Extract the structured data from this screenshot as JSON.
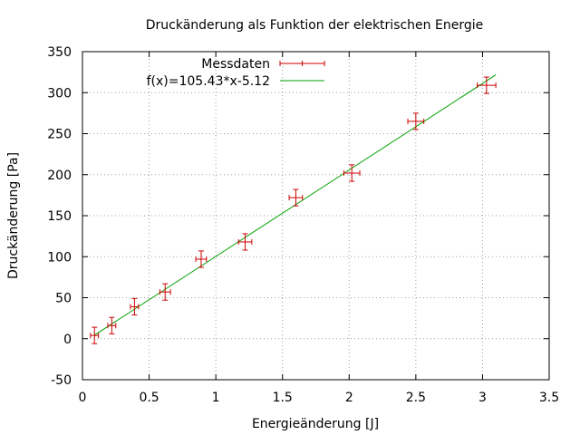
{
  "chart_data": {
    "type": "scatter",
    "title": "Druckänderung als Funktion der elektrischen Energie",
    "xlabel": "Energieänderung [J]",
    "ylabel": "Druckänderung [Pa]",
    "xlim": [
      0,
      3.5
    ],
    "ylim": [
      -50,
      350
    ],
    "xticks": [
      0,
      0.5,
      1,
      1.5,
      2,
      2.5,
      3,
      3.5
    ],
    "yticks": [
      -50,
      0,
      50,
      100,
      150,
      200,
      250,
      300,
      350
    ],
    "xtick_labels": [
      "0",
      "0.5",
      "1",
      "1.5",
      "2",
      "2.5",
      "3",
      "3.5"
    ],
    "ytick_labels": [
      "-50",
      "0",
      "50",
      "100",
      "150",
      "200",
      "250",
      "300",
      "350"
    ],
    "grid": true,
    "legend_position": "top-left",
    "series": [
      {
        "name": "Messdaten",
        "kind": "points-with-error-bars",
        "color": "#cc0000",
        "points": [
          {
            "x": 0.09,
            "y": 4,
            "xerr": 0.03,
            "yerr": 10
          },
          {
            "x": 0.22,
            "y": 16,
            "xerr": 0.03,
            "yerr": 10
          },
          {
            "x": 0.39,
            "y": 39,
            "xerr": 0.03,
            "yerr": 10
          },
          {
            "x": 0.62,
            "y": 57,
            "xerr": 0.04,
            "yerr": 10
          },
          {
            "x": 0.89,
            "y": 97,
            "xerr": 0.04,
            "yerr": 10
          },
          {
            "x": 1.22,
            "y": 118,
            "xerr": 0.05,
            "yerr": 10
          },
          {
            "x": 1.6,
            "y": 172,
            "xerr": 0.05,
            "yerr": 10
          },
          {
            "x": 2.02,
            "y": 202,
            "xerr": 0.06,
            "yerr": 10
          },
          {
            "x": 2.5,
            "y": 265,
            "xerr": 0.06,
            "yerr": 10
          },
          {
            "x": 3.03,
            "y": 309,
            "xerr": 0.07,
            "yerr": 10
          }
        ]
      },
      {
        "name": "f(x)=105.43*x-5.12",
        "kind": "line",
        "color": "#00a000",
        "x_range": [
          0.09,
          3.1
        ],
        "slope": 105.43,
        "intercept": -5.12
      }
    ]
  }
}
